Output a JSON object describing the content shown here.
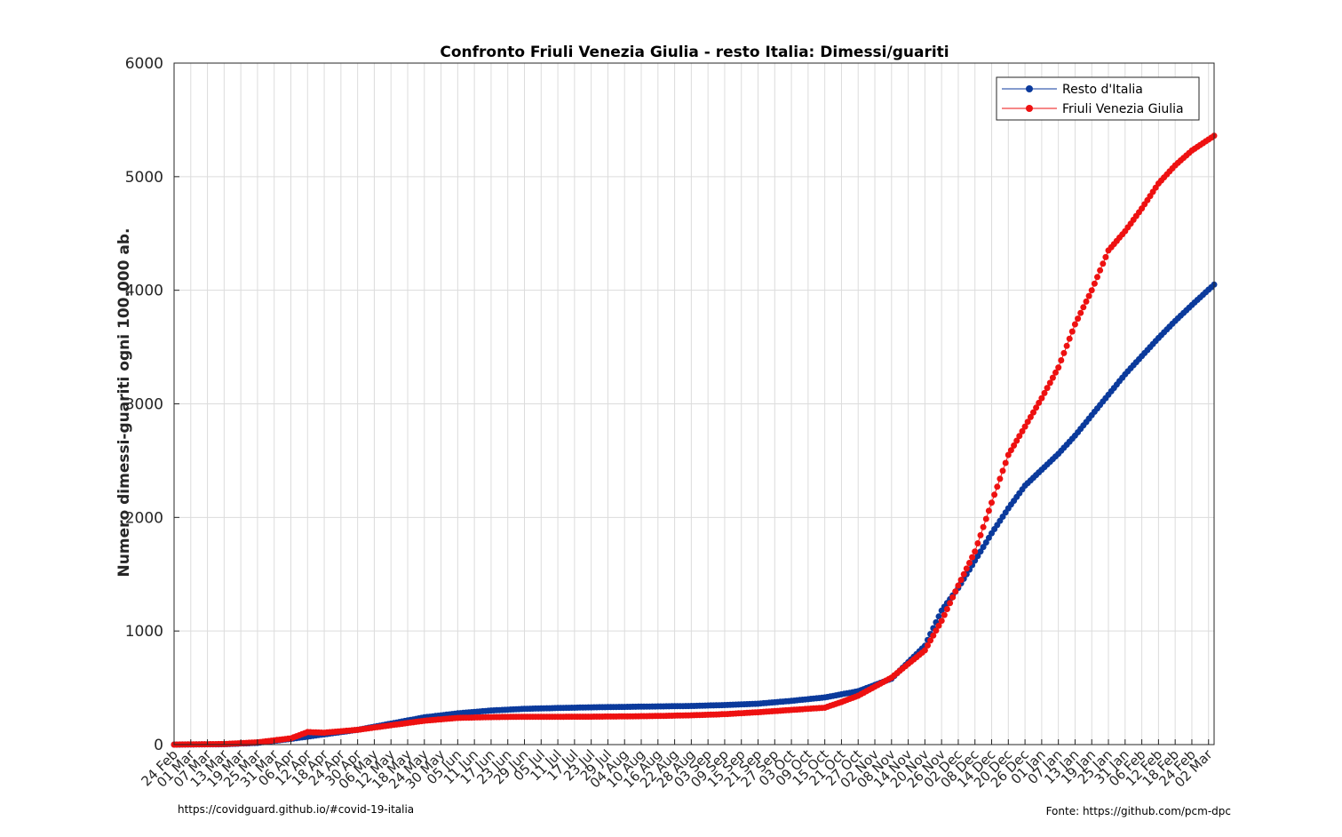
{
  "chart_data": {
    "type": "line",
    "title": "Confronto Friuli Venezia Giulia - resto Italia: Dimessi/guariti",
    "xlabel": "",
    "ylabel": "Numero dimessi-guariti ogni 100.000 ab.",
    "ylim": [
      0,
      6000
    ],
    "yticks": [
      0,
      1000,
      2000,
      3000,
      4000,
      5000,
      6000
    ],
    "x_start": "2020-02-24",
    "x_end": "2021-03-04",
    "x_tick_labels": [
      "24 Feb",
      "01 Mar",
      "07 Mar",
      "13 Mar",
      "19 Mar",
      "25 Mar",
      "31 Mar",
      "06 Apr",
      "12 Apr",
      "18 Apr",
      "24 Apr",
      "30 Apr",
      "06 May",
      "12 May",
      "18 May",
      "24 May",
      "30 May",
      "05 Jun",
      "11 Jun",
      "17 Jun",
      "23 Jun",
      "29 Jun",
      "05 Jul",
      "11 Jul",
      "17 Jul",
      "23 Jul",
      "29 Jul",
      "04 Aug",
      "10 Aug",
      "16 Aug",
      "22 Aug",
      "28 Aug",
      "03 Sep",
      "09 Sep",
      "15 Sep",
      "21 Sep",
      "27 Sep",
      "03 Oct",
      "09 Oct",
      "15 Oct",
      "21 Oct",
      "27 Oct",
      "02 Nov",
      "08 Nov",
      "14 Nov",
      "20 Nov",
      "26 Nov",
      "02 Dec",
      "08 Dec",
      "14 Dec",
      "20 Dec",
      "26 Dec",
      "01 Jan",
      "07 Jan",
      "13 Jan",
      "19 Jan",
      "25 Jan",
      "31 Jan",
      "06 Feb",
      "12 Feb",
      "18 Feb",
      "24 Feb",
      "02 Mar"
    ],
    "grid": true,
    "legend_position": "top-right",
    "series": [
      {
        "name": "Resto d'Italia",
        "color": "#0b3a9c",
        "points": [
          [
            "2020-02-24",
            0
          ],
          [
            "2020-03-13",
            3
          ],
          [
            "2020-03-25",
            15
          ],
          [
            "2020-04-06",
            50
          ],
          [
            "2020-04-18",
            90
          ],
          [
            "2020-04-30",
            130
          ],
          [
            "2020-05-12",
            185
          ],
          [
            "2020-05-24",
            240
          ],
          [
            "2020-06-05",
            275
          ],
          [
            "2020-06-17",
            300
          ],
          [
            "2020-06-29",
            315
          ],
          [
            "2020-07-11",
            322
          ],
          [
            "2020-07-23",
            328
          ],
          [
            "2020-08-04",
            332
          ],
          [
            "2020-08-16",
            336
          ],
          [
            "2020-08-28",
            340
          ],
          [
            "2020-09-09",
            348
          ],
          [
            "2020-09-21",
            360
          ],
          [
            "2020-10-03",
            385
          ],
          [
            "2020-10-15",
            415
          ],
          [
            "2020-10-27",
            470
          ],
          [
            "2020-11-08",
            580
          ],
          [
            "2020-11-20",
            870
          ],
          [
            "2020-11-26",
            1180
          ],
          [
            "2020-12-02",
            1380
          ],
          [
            "2020-12-08",
            1620
          ],
          [
            "2020-12-14",
            1860
          ],
          [
            "2020-12-20",
            2080
          ],
          [
            "2020-12-26",
            2280
          ],
          [
            "2021-01-01",
            2420
          ],
          [
            "2021-01-07",
            2560
          ],
          [
            "2021-01-13",
            2720
          ],
          [
            "2021-01-19",
            2900
          ],
          [
            "2021-01-25",
            3080
          ],
          [
            "2021-01-31",
            3260
          ],
          [
            "2021-02-06",
            3420
          ],
          [
            "2021-02-12",
            3580
          ],
          [
            "2021-02-18",
            3730
          ],
          [
            "2021-02-24",
            3870
          ],
          [
            "2021-03-04",
            4050
          ]
        ]
      },
      {
        "name": "Friuli Venezia Giulia",
        "color": "#ee1111",
        "points": [
          [
            "2020-02-24",
            0
          ],
          [
            "2020-03-13",
            5
          ],
          [
            "2020-03-25",
            20
          ],
          [
            "2020-04-06",
            55
          ],
          [
            "2020-04-12",
            110
          ],
          [
            "2020-04-18",
            105
          ],
          [
            "2020-04-30",
            130
          ],
          [
            "2020-05-12",
            170
          ],
          [
            "2020-05-24",
            210
          ],
          [
            "2020-06-05",
            235
          ],
          [
            "2020-06-17",
            242
          ],
          [
            "2020-06-29",
            245
          ],
          [
            "2020-07-11",
            245
          ],
          [
            "2020-07-23",
            246
          ],
          [
            "2020-08-04",
            248
          ],
          [
            "2020-08-16",
            252
          ],
          [
            "2020-08-28",
            258
          ],
          [
            "2020-09-09",
            268
          ],
          [
            "2020-09-21",
            285
          ],
          [
            "2020-10-03",
            305
          ],
          [
            "2020-10-15",
            325
          ],
          [
            "2020-10-21",
            375
          ],
          [
            "2020-10-27",
            430
          ],
          [
            "2020-11-08",
            590
          ],
          [
            "2020-11-20",
            830
          ],
          [
            "2020-11-26",
            1090
          ],
          [
            "2020-12-02",
            1400
          ],
          [
            "2020-12-08",
            1700
          ],
          [
            "2020-12-14",
            2130
          ],
          [
            "2020-12-20",
            2550
          ],
          [
            "2020-12-26",
            2800
          ],
          [
            "2021-01-01",
            3050
          ],
          [
            "2021-01-07",
            3320
          ],
          [
            "2021-01-13",
            3700
          ],
          [
            "2021-01-19",
            4000
          ],
          [
            "2021-01-25",
            4350
          ],
          [
            "2021-01-31",
            4520
          ],
          [
            "2021-02-06",
            4720
          ],
          [
            "2021-02-12",
            4940
          ],
          [
            "2021-02-18",
            5100
          ],
          [
            "2021-02-24",
            5230
          ],
          [
            "2021-03-04",
            5360
          ]
        ]
      }
    ]
  },
  "footer": {
    "source_left": "https://covidguard.github.io/#covid-19-italia",
    "source_right": "Fonte: https://github.com/pcm-dpc"
  }
}
